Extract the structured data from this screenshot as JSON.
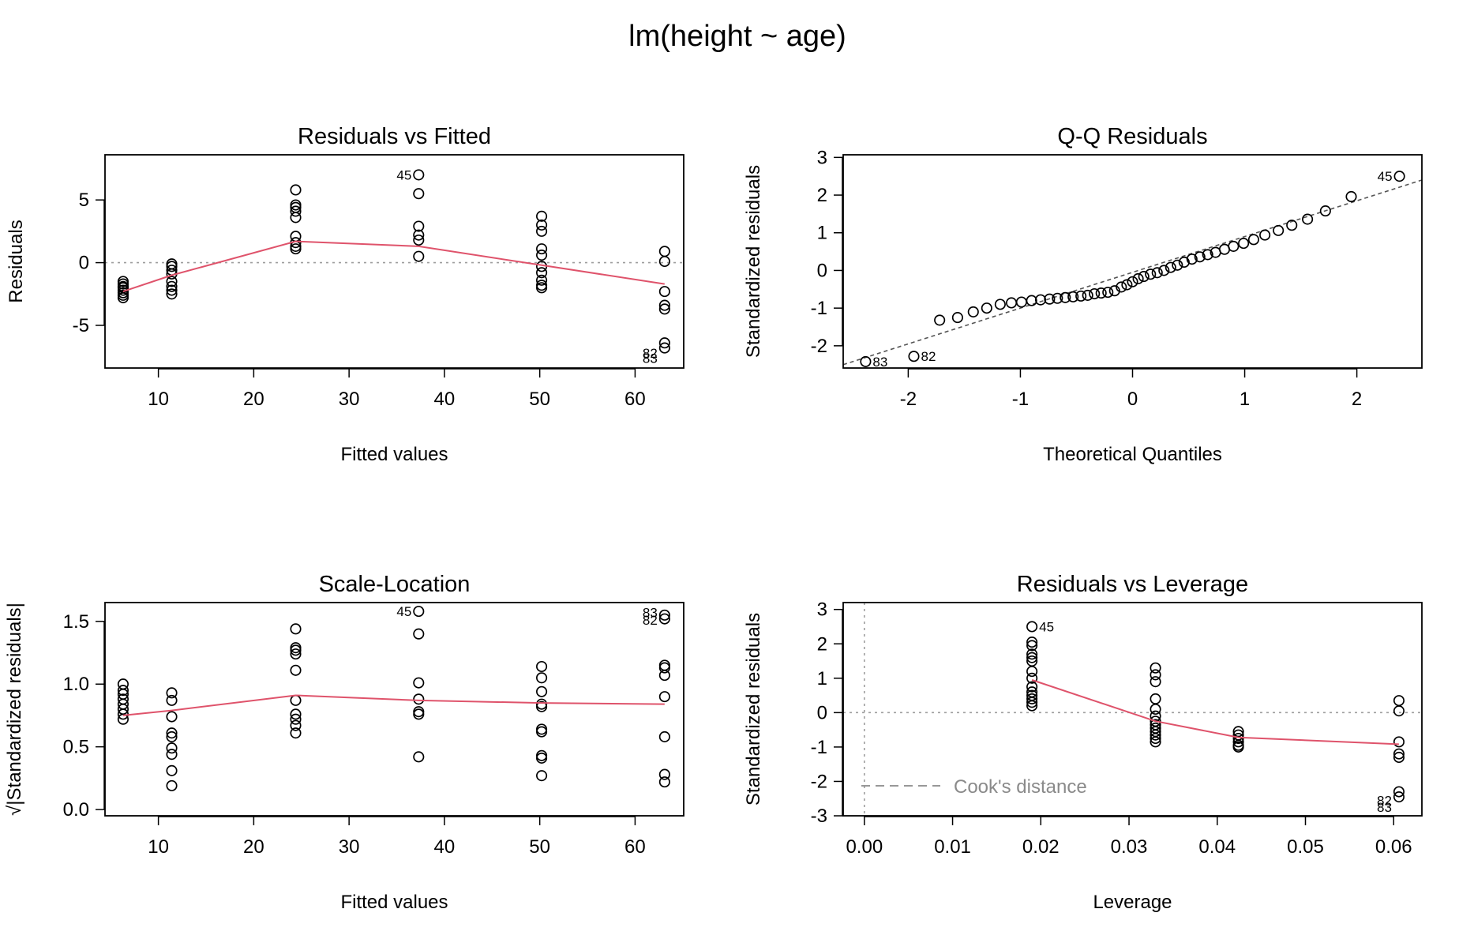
{
  "title": "lm(height ~ age)",
  "colors": {
    "smooth": "#DF536B",
    "refline": "#9e9e9e",
    "points": "#000000"
  },
  "chart_data": [
    {
      "id": "rvf",
      "type": "scatter",
      "title": "Residuals vs Fitted",
      "xlabel": "Fitted values",
      "ylabel": "Residuals",
      "xlim": [
        4.4,
        65.1
      ],
      "ylim": [
        -8.4,
        8.6
      ],
      "xticks": [
        10,
        20,
        30,
        40,
        50,
        60
      ],
      "yticks": [
        -5,
        0,
        5
      ],
      "hline": 0,
      "points": [
        [
          6.3,
          -1.5
        ],
        [
          6.3,
          -1.7
        ],
        [
          6.3,
          -1.9
        ],
        [
          6.3,
          -2.0
        ],
        [
          6.3,
          -2.2
        ],
        [
          6.3,
          -2.4
        ],
        [
          6.3,
          -2.6
        ],
        [
          6.3,
          -2.8
        ],
        [
          11.4,
          -0.1
        ],
        [
          11.4,
          -0.3
        ],
        [
          11.4,
          -0.6
        ],
        [
          11.4,
          -0.9
        ],
        [
          11.4,
          -1.5
        ],
        [
          11.4,
          -1.9
        ],
        [
          11.4,
          -2.2
        ],
        [
          11.4,
          -2.5
        ],
        [
          24.4,
          5.8
        ],
        [
          24.4,
          4.6
        ],
        [
          24.4,
          4.4
        ],
        [
          24.4,
          4.1
        ],
        [
          24.4,
          3.6
        ],
        [
          24.4,
          2.1
        ],
        [
          24.4,
          1.6
        ],
        [
          24.4,
          1.3
        ],
        [
          24.4,
          1.1
        ],
        [
          37.3,
          7.0
        ],
        [
          37.3,
          5.5
        ],
        [
          37.3,
          2.9
        ],
        [
          37.3,
          2.2
        ],
        [
          37.3,
          1.8
        ],
        [
          37.3,
          0.5
        ],
        [
          50.2,
          3.7
        ],
        [
          50.2,
          3.0
        ],
        [
          50.2,
          2.5
        ],
        [
          50.2,
          1.1
        ],
        [
          50.2,
          0.6
        ],
        [
          50.2,
          -0.3
        ],
        [
          50.2,
          -0.8
        ],
        [
          50.2,
          -1.4
        ],
        [
          50.2,
          -1.8
        ],
        [
          50.2,
          -2.0
        ],
        [
          63.1,
          0.9
        ],
        [
          63.1,
          0.1
        ],
        [
          63.1,
          -2.3
        ],
        [
          63.1,
          -3.4
        ],
        [
          63.1,
          -3.7
        ],
        [
          63.1,
          -6.4
        ],
        [
          63.1,
          -6.8
        ]
      ],
      "smooth": [
        [
          6.3,
          -2.3
        ],
        [
          11.4,
          -1.0
        ],
        [
          24.4,
          1.7
        ],
        [
          37.3,
          1.3
        ],
        [
          50.2,
          -0.2
        ],
        [
          63.1,
          -1.7
        ]
      ],
      "labels": [
        {
          "text": "45",
          "x": 37.3,
          "y": 7.0,
          "side": "left"
        },
        {
          "text": "82",
          "x": 63.1,
          "y": -7.2,
          "side": "left"
        },
        {
          "text": "83",
          "x": 63.1,
          "y": -7.6,
          "side": "left"
        }
      ]
    },
    {
      "id": "qq",
      "type": "scatter",
      "title": "Q-Q Residuals",
      "xlabel": "Theoretical Quantiles",
      "ylabel": "Standardized residuals",
      "xlim": [
        -2.58,
        2.58
      ],
      "ylim": [
        -2.59,
        3.07
      ],
      "xticks": [
        -2,
        -1,
        0,
        1,
        2
      ],
      "yticks": [
        -2,
        -1,
        0,
        1,
        2,
        3
      ],
      "refline": [
        [
          -2.58,
          -2.5
        ],
        [
          2.58,
          2.4
        ]
      ],
      "points": [
        [
          -2.38,
          -2.42
        ],
        [
          -1.95,
          -2.28
        ],
        [
          -1.72,
          -1.32
        ],
        [
          -1.56,
          -1.25
        ],
        [
          -1.42,
          -1.1
        ],
        [
          -1.3,
          -1.0
        ],
        [
          -1.18,
          -0.9
        ],
        [
          -1.08,
          -0.86
        ],
        [
          -0.99,
          -0.84
        ],
        [
          -0.9,
          -0.8
        ],
        [
          -0.82,
          -0.78
        ],
        [
          -0.74,
          -0.76
        ],
        [
          -0.67,
          -0.74
        ],
        [
          -0.6,
          -0.72
        ],
        [
          -0.53,
          -0.7
        ],
        [
          -0.46,
          -0.68
        ],
        [
          -0.4,
          -0.66
        ],
        [
          -0.34,
          -0.62
        ],
        [
          -0.28,
          -0.6
        ],
        [
          -0.22,
          -0.58
        ],
        [
          -0.16,
          -0.54
        ],
        [
          -0.1,
          -0.44
        ],
        [
          -0.05,
          -0.38
        ],
        [
          0.0,
          -0.3
        ],
        [
          0.05,
          -0.22
        ],
        [
          0.1,
          -0.16
        ],
        [
          0.16,
          -0.1
        ],
        [
          0.22,
          -0.06
        ],
        [
          0.28,
          0.0
        ],
        [
          0.34,
          0.08
        ],
        [
          0.4,
          0.14
        ],
        [
          0.46,
          0.22
        ],
        [
          0.53,
          0.3
        ],
        [
          0.6,
          0.36
        ],
        [
          0.67,
          0.42
        ],
        [
          0.74,
          0.48
        ],
        [
          0.82,
          0.56
        ],
        [
          0.9,
          0.64
        ],
        [
          0.99,
          0.72
        ],
        [
          1.08,
          0.82
        ],
        [
          1.18,
          0.94
        ],
        [
          1.3,
          1.06
        ],
        [
          1.42,
          1.2
        ],
        [
          1.56,
          1.36
        ],
        [
          1.72,
          1.58
        ],
        [
          1.95,
          1.96
        ],
        [
          2.38,
          2.5
        ]
      ],
      "labels": [
        {
          "text": "45",
          "x": 2.38,
          "y": 2.5,
          "side": "left"
        },
        {
          "text": "83",
          "x": -2.38,
          "y": -2.42,
          "side": "right"
        },
        {
          "text": "82",
          "x": -1.95,
          "y": -2.28,
          "side": "right"
        }
      ]
    },
    {
      "id": "sl",
      "type": "scatter",
      "title": "Scale-Location",
      "xlabel": "Fitted values",
      "ylabel": "√|Standardized residuals|",
      "xlim": [
        4.4,
        65.1
      ],
      "ylim": [
        -0.05,
        1.65
      ],
      "xticks": [
        10,
        20,
        30,
        40,
        50,
        60
      ],
      "yticks": [
        0.0,
        0.5,
        1.0,
        1.5
      ],
      "yticklabels": [
        "0.0",
        "0.5",
        "1.0",
        "1.5"
      ],
      "points": [
        [
          6.3,
          1.0
        ],
        [
          6.3,
          0.95
        ],
        [
          6.3,
          0.92
        ],
        [
          6.3,
          0.88
        ],
        [
          6.3,
          0.84
        ],
        [
          6.3,
          0.8
        ],
        [
          6.3,
          0.76
        ],
        [
          6.3,
          0.72
        ],
        [
          11.4,
          0.93
        ],
        [
          11.4,
          0.87
        ],
        [
          11.4,
          0.74
        ],
        [
          11.4,
          0.61
        ],
        [
          11.4,
          0.58
        ],
        [
          11.4,
          0.49
        ],
        [
          11.4,
          0.44
        ],
        [
          11.4,
          0.31
        ],
        [
          11.4,
          0.19
        ],
        [
          24.4,
          1.44
        ],
        [
          24.4,
          1.29
        ],
        [
          24.4,
          1.27
        ],
        [
          24.4,
          1.24
        ],
        [
          24.4,
          1.11
        ],
        [
          24.4,
          0.87
        ],
        [
          24.4,
          0.76
        ],
        [
          24.4,
          0.72
        ],
        [
          24.4,
          0.67
        ],
        [
          24.4,
          0.61
        ],
        [
          37.3,
          1.58
        ],
        [
          37.3,
          1.4
        ],
        [
          37.3,
          1.01
        ],
        [
          37.3,
          0.88
        ],
        [
          37.3,
          0.78
        ],
        [
          37.3,
          0.76
        ],
        [
          37.3,
          0.42
        ],
        [
          50.2,
          1.14
        ],
        [
          50.2,
          1.05
        ],
        [
          50.2,
          0.94
        ],
        [
          50.2,
          0.84
        ],
        [
          50.2,
          0.82
        ],
        [
          50.2,
          0.64
        ],
        [
          50.2,
          0.62
        ],
        [
          50.2,
          0.43
        ],
        [
          50.2,
          0.41
        ],
        [
          50.2,
          0.27
        ],
        [
          63.1,
          1.55
        ],
        [
          63.1,
          1.52
        ],
        [
          63.1,
          1.15
        ],
        [
          63.1,
          1.13
        ],
        [
          63.1,
          1.07
        ],
        [
          63.1,
          0.9
        ],
        [
          63.1,
          0.58
        ],
        [
          63.1,
          0.28
        ],
        [
          63.1,
          0.22
        ]
      ],
      "smooth": [
        [
          6.3,
          0.75
        ],
        [
          11.4,
          0.79
        ],
        [
          24.4,
          0.91
        ],
        [
          37.3,
          0.87
        ],
        [
          50.2,
          0.85
        ],
        [
          63.1,
          0.84
        ]
      ],
      "labels": [
        {
          "text": "45",
          "x": 37.3,
          "y": 1.58,
          "side": "left"
        },
        {
          "text": "83",
          "x": 63.1,
          "y": 1.57,
          "side": "left"
        },
        {
          "text": "82",
          "x": 63.1,
          "y": 1.51,
          "side": "left"
        }
      ]
    },
    {
      "id": "rvl",
      "type": "scatter",
      "title": "Residuals vs Leverage",
      "xlabel": "Leverage",
      "ylabel": "Standardized residuals",
      "xlim": [
        -0.0024,
        0.0632
      ],
      "ylim": [
        -3.0,
        3.2
      ],
      "xticks": [
        0.0,
        0.01,
        0.02,
        0.03,
        0.04,
        0.05,
        0.06
      ],
      "xticklabels": [
        "0.00",
        "0.01",
        "0.02",
        "0.03",
        "0.04",
        "0.05",
        "0.06"
      ],
      "yticks": [
        -3,
        -2,
        -1,
        0,
        1,
        2,
        3
      ],
      "hline": 0,
      "vline": 0,
      "legend": "Cook's distance",
      "legend_position": "bottom-left",
      "points": [
        [
          0.019,
          2.5
        ],
        [
          0.019,
          2.05
        ],
        [
          0.019,
          1.95
        ],
        [
          0.019,
          1.7
        ],
        [
          0.019,
          1.6
        ],
        [
          0.019,
          1.5
        ],
        [
          0.019,
          1.2
        ],
        [
          0.019,
          1.0
        ],
        [
          0.019,
          0.75
        ],
        [
          0.019,
          0.6
        ],
        [
          0.019,
          0.5
        ],
        [
          0.019,
          0.4
        ],
        [
          0.019,
          0.3
        ],
        [
          0.019,
          0.2
        ],
        [
          0.033,
          1.3
        ],
        [
          0.033,
          1.1
        ],
        [
          0.033,
          0.9
        ],
        [
          0.033,
          0.4
        ],
        [
          0.033,
          0.1
        ],
        [
          0.033,
          -0.1
        ],
        [
          0.033,
          -0.25
        ],
        [
          0.033,
          -0.35
        ],
        [
          0.033,
          -0.45
        ],
        [
          0.033,
          -0.55
        ],
        [
          0.033,
          -0.65
        ],
        [
          0.033,
          -0.75
        ],
        [
          0.033,
          -0.85
        ],
        [
          0.0424,
          -0.55
        ],
        [
          0.0424,
          -0.65
        ],
        [
          0.0424,
          -0.75
        ],
        [
          0.0424,
          -0.85
        ],
        [
          0.0424,
          -0.95
        ],
        [
          0.0424,
          -1.0
        ],
        [
          0.0606,
          0.35
        ],
        [
          0.0606,
          0.05
        ],
        [
          0.0606,
          -0.85
        ],
        [
          0.0606,
          -1.2
        ],
        [
          0.0606,
          -1.3
        ],
        [
          0.0606,
          -2.3
        ],
        [
          0.0606,
          -2.45
        ]
      ],
      "smooth": [
        [
          0.019,
          0.95
        ],
        [
          0.033,
          -0.25
        ],
        [
          0.0424,
          -0.72
        ],
        [
          0.0606,
          -0.92
        ]
      ],
      "labels": [
        {
          "text": "45",
          "x": 0.019,
          "y": 2.5,
          "side": "right"
        },
        {
          "text": "82",
          "x": 0.0606,
          "y": -2.55,
          "side": "left"
        },
        {
          "text": "83",
          "x": 0.0606,
          "y": -2.75,
          "side": "left"
        }
      ]
    }
  ]
}
